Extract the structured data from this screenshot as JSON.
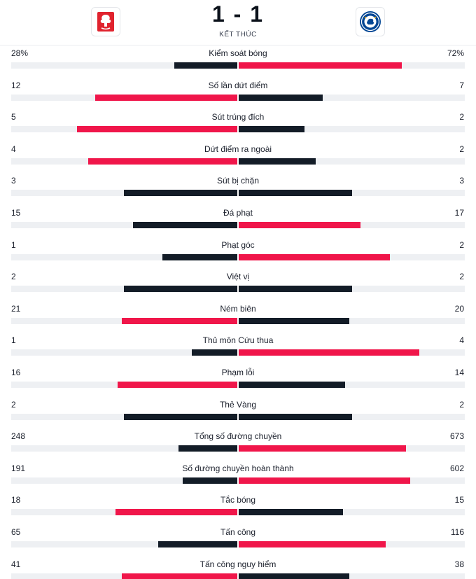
{
  "match": {
    "score": "1 - 1",
    "status": "KẾT THÚC",
    "home_logo_icon": "nottingham-forest-crest-icon",
    "away_logo_icon": "chelsea-crest-icon"
  },
  "colors": {
    "winner": "#f0164a",
    "other": "#131c27",
    "track": "#eef0f3"
  },
  "scale_max": 1.0,
  "stats": [
    {
      "label": "Kiểm soát bóng",
      "home": "28%",
      "away": "72%",
      "home_frac": 0.28,
      "away_frac": 0.72
    },
    {
      "label": "Số lần dứt điểm",
      "home": "12",
      "away": "7",
      "home_frac": 0.63,
      "away_frac": 0.37
    },
    {
      "label": "Sút trúng đích",
      "home": "5",
      "away": "2",
      "home_frac": 0.71,
      "away_frac": 0.29
    },
    {
      "label": "Dứt điểm ra ngoài",
      "home": "4",
      "away": "2",
      "home_frac": 0.66,
      "away_frac": 0.34
    },
    {
      "label": "Sút bị chặn",
      "home": "3",
      "away": "3",
      "home_frac": 0.5,
      "away_frac": 0.5
    },
    {
      "label": "Đá phạt",
      "home": "15",
      "away": "17",
      "home_frac": 0.46,
      "away_frac": 0.54
    },
    {
      "label": "Phạt góc",
      "home": "1",
      "away": "2",
      "home_frac": 0.33,
      "away_frac": 0.67
    },
    {
      "label": "Việt vị",
      "home": "2",
      "away": "2",
      "home_frac": 0.5,
      "away_frac": 0.5
    },
    {
      "label": "Ném biên",
      "home": "21",
      "away": "20",
      "home_frac": 0.51,
      "away_frac": 0.49
    },
    {
      "label": "Thủ môn Cứu thua",
      "home": "1",
      "away": "4",
      "home_frac": 0.2,
      "away_frac": 0.8
    },
    {
      "label": "Phạm lỗi",
      "home": "16",
      "away": "14",
      "home_frac": 0.53,
      "away_frac": 0.47
    },
    {
      "label": "Thẻ Vàng",
      "home": "2",
      "away": "2",
      "home_frac": 0.5,
      "away_frac": 0.5
    },
    {
      "label": "Tổng số đường chuyền",
      "home": "248",
      "away": "673",
      "home_frac": 0.26,
      "away_frac": 0.74
    },
    {
      "label": "Số đường chuyền hoàn thành",
      "home": "191",
      "away": "602",
      "home_frac": 0.24,
      "away_frac": 0.76
    },
    {
      "label": "Tắc bóng",
      "home": "18",
      "away": "15",
      "home_frac": 0.54,
      "away_frac": 0.46
    },
    {
      "label": "Tấn công",
      "home": "65",
      "away": "116",
      "home_frac": 0.35,
      "away_frac": 0.65
    },
    {
      "label": "Tấn công nguy hiểm",
      "home": "41",
      "away": "38",
      "home_frac": 0.51,
      "away_frac": 0.49
    }
  ]
}
